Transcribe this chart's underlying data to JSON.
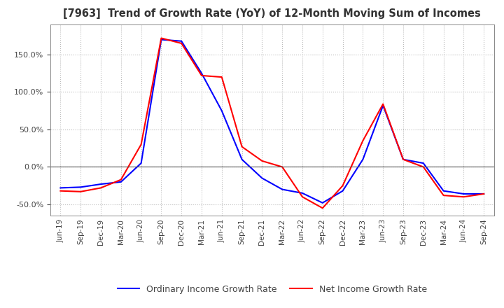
{
  "title": "[7963]  Trend of Growth Rate (YoY) of 12-Month Moving Sum of Incomes",
  "background_color": "#ffffff",
  "grid_color": "#bbbbbb",
  "x_labels": [
    "Jun-19",
    "Sep-19",
    "Dec-19",
    "Mar-20",
    "Jun-20",
    "Sep-20",
    "Dec-20",
    "Mar-21",
    "Jun-21",
    "Sep-21",
    "Dec-21",
    "Mar-22",
    "Jun-22",
    "Sep-22",
    "Dec-22",
    "Mar-23",
    "Jun-23",
    "Sep-23",
    "Dec-23",
    "Mar-24",
    "Jun-24",
    "Sep-24"
  ],
  "ordinary_income": [
    -0.28,
    -0.27,
    -0.23,
    -0.2,
    0.05,
    1.7,
    1.68,
    1.25,
    0.75,
    0.1,
    -0.15,
    -0.3,
    -0.35,
    -0.48,
    -0.32,
    0.1,
    0.82,
    0.1,
    0.05,
    -0.32,
    -0.36,
    -0.36
  ],
  "net_income": [
    -0.32,
    -0.33,
    -0.28,
    -0.17,
    0.3,
    1.72,
    1.65,
    1.22,
    1.2,
    0.27,
    0.08,
    0.0,
    -0.4,
    -0.55,
    -0.25,
    0.35,
    0.84,
    0.1,
    0.0,
    -0.38,
    -0.4,
    -0.36
  ],
  "ordinary_color": "#0000ff",
  "net_color": "#ff0000",
  "line_width": 1.5,
  "yticks": [
    -0.5,
    0.0,
    0.5,
    1.0,
    1.5
  ],
  "ylim": [
    -0.65,
    1.9
  ],
  "legend_labels": [
    "Ordinary Income Growth Rate",
    "Net Income Growth Rate"
  ]
}
